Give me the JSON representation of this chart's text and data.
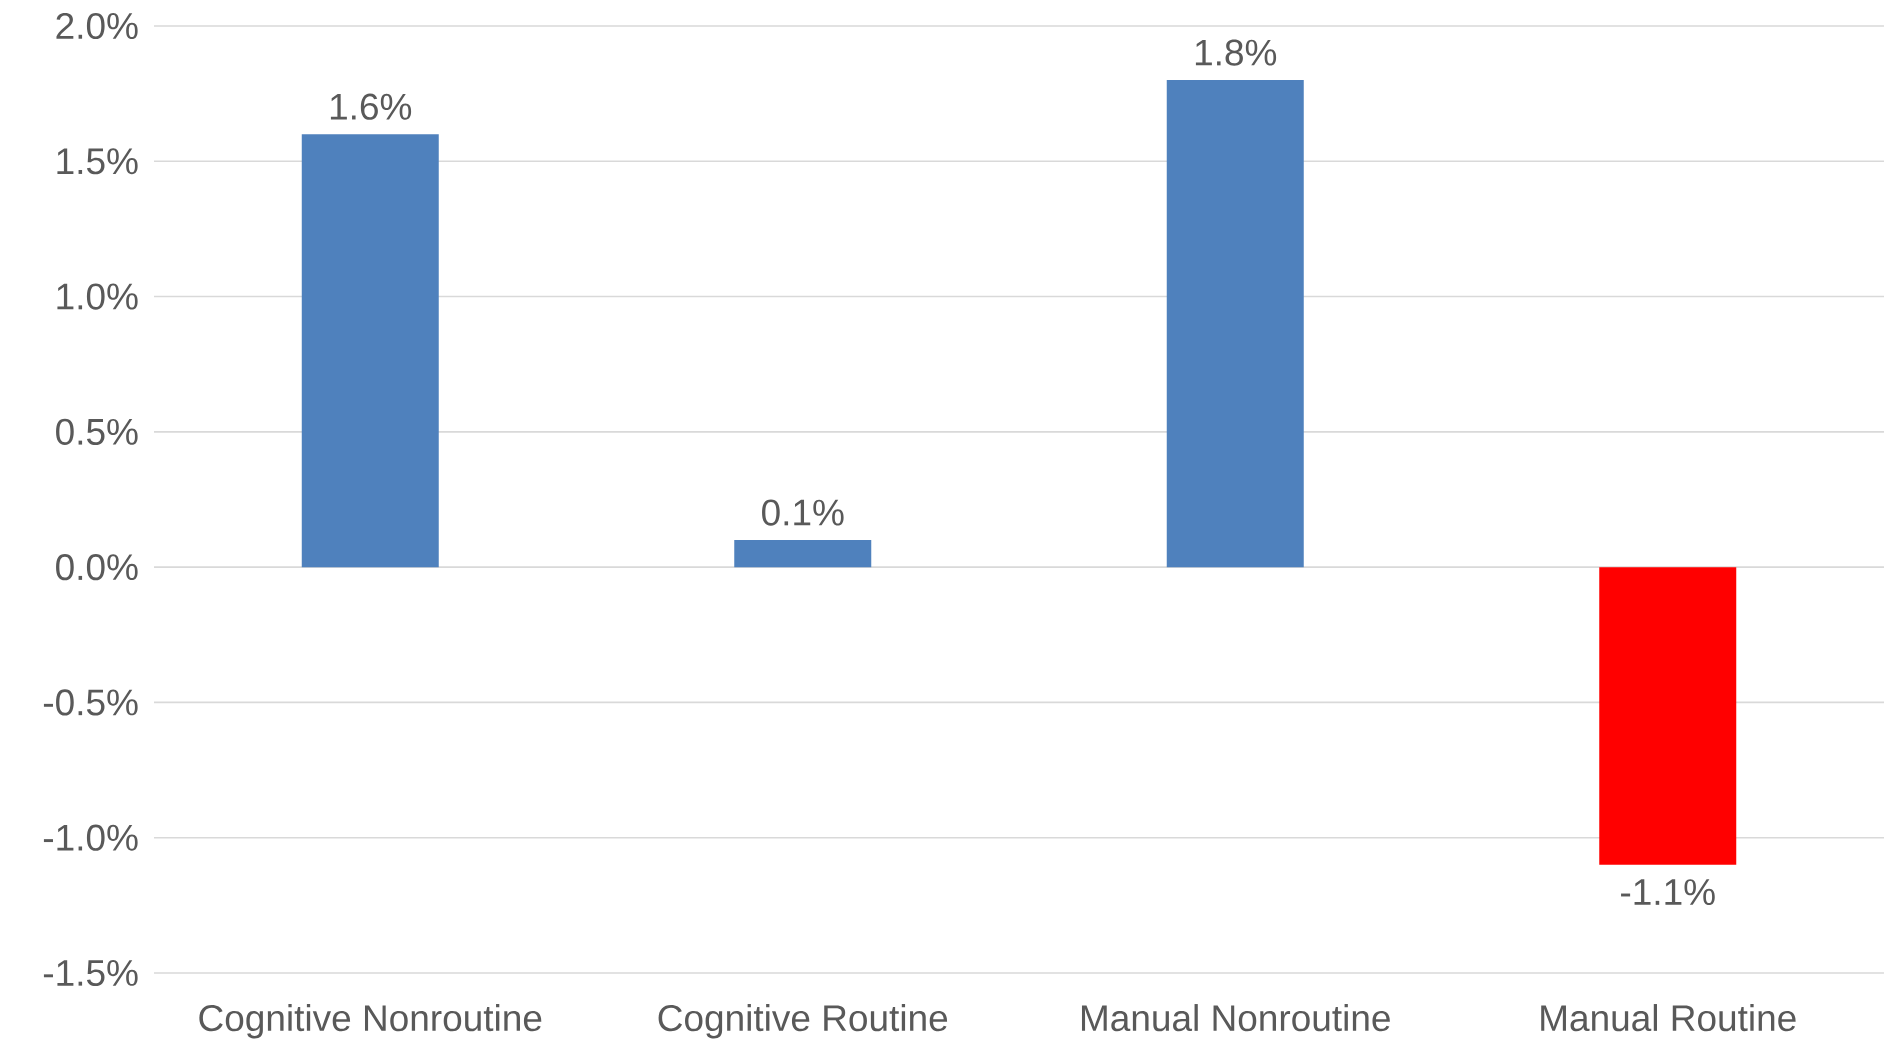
{
  "chart_data": {
    "type": "bar",
    "categories": [
      "Cognitive Nonroutine",
      "Cognitive Routine",
      "Manual Nonroutine",
      "Manual Routine"
    ],
    "values": [
      1.6,
      0.1,
      1.8,
      -1.1
    ],
    "colors": [
      "#4f81bd",
      "#4f81bd",
      "#4f81bd",
      "#ff0000"
    ],
    "value_labels": [
      "1.6%",
      "0.1%",
      "1.8%",
      "-1.1%"
    ],
    "ylim": [
      -1.5,
      2.0
    ],
    "yticks": [
      {
        "value": -1.5,
        "label": "-1.5%"
      },
      {
        "value": -1.0,
        "label": "-1.0%"
      },
      {
        "value": -0.5,
        "label": "-0.5%"
      },
      {
        "value": 0.0,
        "label": "0.0%"
      },
      {
        "value": 0.5,
        "label": "0.5%"
      },
      {
        "value": 1.0,
        "label": "1.0%"
      },
      {
        "value": 1.5,
        "label": "1.5%"
      },
      {
        "value": 2.0,
        "label": "2.0%"
      }
    ],
    "grid": "y"
  }
}
